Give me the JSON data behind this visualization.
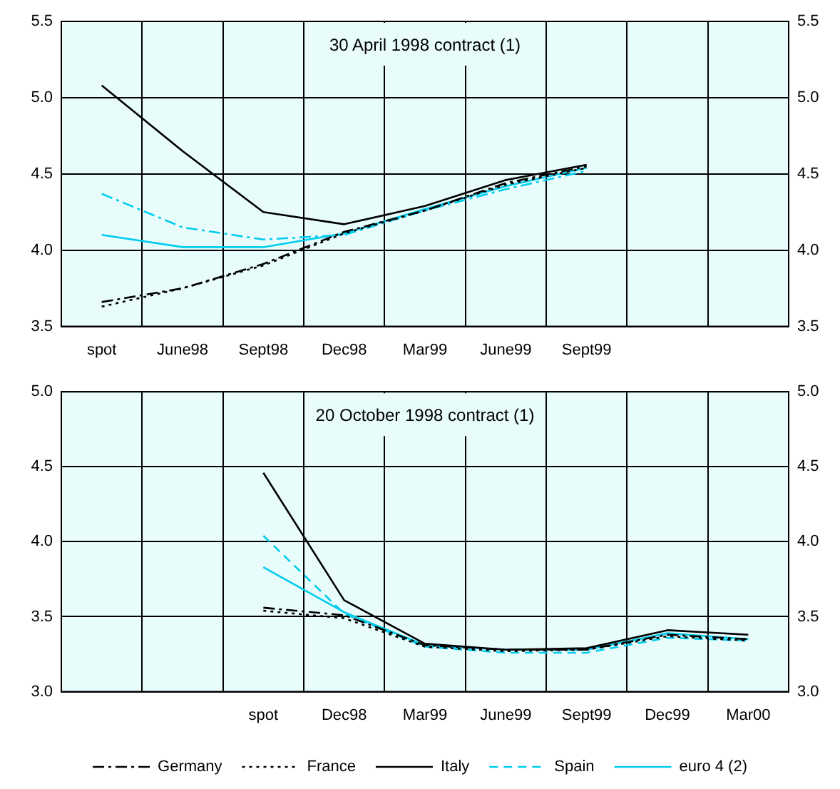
{
  "chart_data": [
    {
      "type": "line",
      "title": "30 April 1998 contract (1)",
      "categories": [
        "spot",
        "June98",
        "Sept98",
        "Dec98",
        "Mar99",
        "June99",
        "Sept99",
        null,
        null
      ],
      "ylim": [
        3.5,
        5.5
      ],
      "yticks": [
        {
          "value": 3.5,
          "label": "3.5"
        },
        {
          "value": 4,
          "label": "4.0"
        },
        {
          "value": 4.5,
          "label": "4.5"
        },
        {
          "value": 5,
          "label": "5.0"
        },
        {
          "value": 5.5,
          "label": "5.5"
        }
      ],
      "y2lim": [
        3.5,
        5.5
      ],
      "y2ticks": [
        {
          "value": 3.5,
          "label": "3.5"
        },
        {
          "value": 4,
          "label": "4.0"
        },
        {
          "value": 4.5,
          "label": "4.5"
        },
        {
          "value": 5,
          "label": "5.0"
        },
        {
          "value": 5.5,
          "label": "5.5"
        }
      ],
      "grid": true,
      "legend": false,
      "marker": "none",
      "series": [
        {
          "color": "#000000",
          "line_style": "dashdot",
          "values": [
            3.66,
            3.75,
            3.91,
            4.12,
            4.26,
            4.44,
            4.55,
            null,
            null
          ]
        },
        {
          "color": "#000000",
          "line_style": "dotted",
          "values": [
            3.63,
            3.75,
            3.9,
            4.11,
            4.26,
            4.43,
            4.54,
            null,
            null
          ]
        },
        {
          "color": "#000000",
          "line_style": "solid",
          "values": [
            5.08,
            4.65,
            4.25,
            4.17,
            4.29,
            4.46,
            4.56,
            null,
            null
          ]
        },
        {
          "color": "#00ccee",
          "line_style": "dashdot",
          "values": [
            4.37,
            4.15,
            4.07,
            4.1,
            4.26,
            4.4,
            4.52,
            null,
            null
          ]
        },
        {
          "color": "#00ccee",
          "line_style": "solid",
          "values": [
            4.1,
            4.02,
            4.02,
            4.11,
            4.27,
            4.42,
            4.54,
            null,
            null
          ]
        }
      ]
    },
    {
      "type": "line",
      "title": "20 October 1998 contract (1)",
      "categories": [
        null,
        null,
        "spot",
        "Dec98",
        "Mar99",
        "June99",
        "Sept99",
        "Dec99",
        "Mar00"
      ],
      "ylim": [
        3,
        5
      ],
      "yticks": [
        {
          "value": 3,
          "label": "3.0"
        },
        {
          "value": 3.5,
          "label": "3.5"
        },
        {
          "value": 4,
          "label": "4.0"
        },
        {
          "value": 4.5,
          "label": "4.5"
        },
        {
          "value": 5,
          "label": "5.0"
        }
      ],
      "y2lim": [
        3,
        5
      ],
      "y2ticks": [
        {
          "value": 3,
          "label": "3.0"
        },
        {
          "value": 3.5,
          "label": "3.5"
        },
        {
          "value": 4,
          "label": "4.0"
        },
        {
          "value": 4.5,
          "label": "4.5"
        },
        {
          "value": 5,
          "label": "5.0"
        }
      ],
      "grid": true,
      "legend": "bottom",
      "marker": "none",
      "series": [
        {
          "name": "Germany",
          "color": "#000000",
          "line_style": "dashdot",
          "values": [
            null,
            null,
            3.56,
            3.51,
            3.31,
            3.28,
            3.28,
            3.38,
            3.35
          ]
        },
        {
          "name": "France",
          "color": "#000000",
          "line_style": "dotted",
          "values": [
            null,
            null,
            3.54,
            3.49,
            3.3,
            3.27,
            3.28,
            3.37,
            3.34
          ]
        },
        {
          "name": "Italy",
          "color": "#000000",
          "line_style": "solid",
          "values": [
            null,
            null,
            4.46,
            3.61,
            3.32,
            3.28,
            3.29,
            3.41,
            3.38
          ]
        },
        {
          "name": "Spain",
          "color": "#00ccee",
          "line_style": "dashed",
          "values": [
            null,
            null,
            4.04,
            3.52,
            3.3,
            3.26,
            3.26,
            3.36,
            3.34
          ]
        },
        {
          "name": "euro 4 (2)",
          "color": "#00ccee",
          "line_style": "solid",
          "values": [
            null,
            null,
            3.83,
            3.53,
            3.31,
            3.28,
            3.28,
            3.39,
            3.35
          ]
        }
      ]
    }
  ]
}
